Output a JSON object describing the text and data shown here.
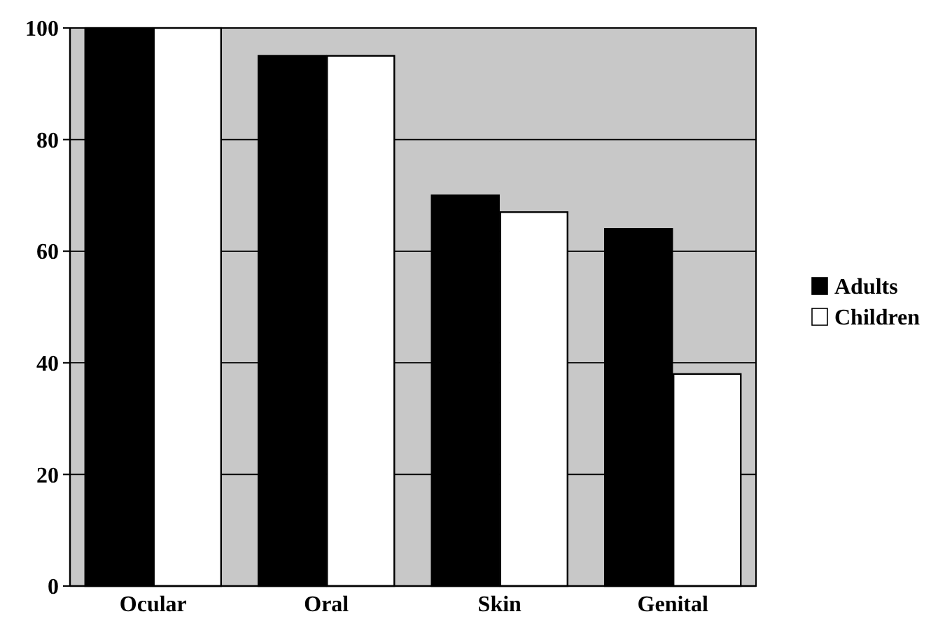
{
  "chart_data": {
    "type": "bar",
    "categories": [
      "Ocular",
      "Oral",
      "Skin",
      "Genital"
    ],
    "series": [
      {
        "name": "Adults",
        "color": "#000000",
        "values": [
          100,
          95,
          70,
          64
        ]
      },
      {
        "name": "Children",
        "color": "#ffffff",
        "values": [
          100,
          95,
          67,
          38
        ]
      }
    ],
    "ylim": [
      0,
      100
    ],
    "yticks": [
      0,
      20,
      40,
      60,
      80,
      100
    ],
    "grid": "y",
    "legend": "right"
  }
}
